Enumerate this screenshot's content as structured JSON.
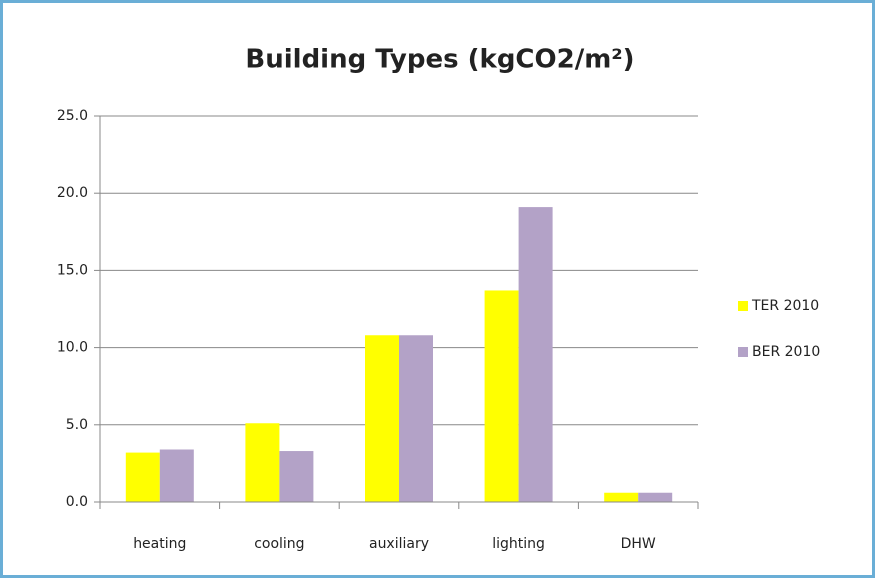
{
  "chart_data": {
    "type": "bar",
    "title": "Building Types (kgCO2/m²)",
    "categories": [
      "heating",
      "cooling",
      "auxiliary",
      "lighting",
      "DHW"
    ],
    "series": [
      {
        "name": "TER 2010",
        "color": "#ffff00",
        "values": [
          3.2,
          5.1,
          10.8,
          13.7,
          0.6
        ]
      },
      {
        "name": "BER 2010",
        "color": "#b3a2c7",
        "values": [
          3.4,
          3.3,
          10.8,
          19.1,
          0.6
        ]
      }
    ],
    "ylim": [
      0,
      25
    ],
    "yticks": [
      {
        "value": 0,
        "label": "0.0"
      },
      {
        "value": 5,
        "label": "5.0"
      },
      {
        "value": 10,
        "label": "10.0"
      },
      {
        "value": 15,
        "label": "15.0"
      },
      {
        "value": 20,
        "label": "20.0"
      },
      {
        "value": 25,
        "label": "25.0"
      }
    ],
    "grid": true,
    "legend": "right"
  }
}
